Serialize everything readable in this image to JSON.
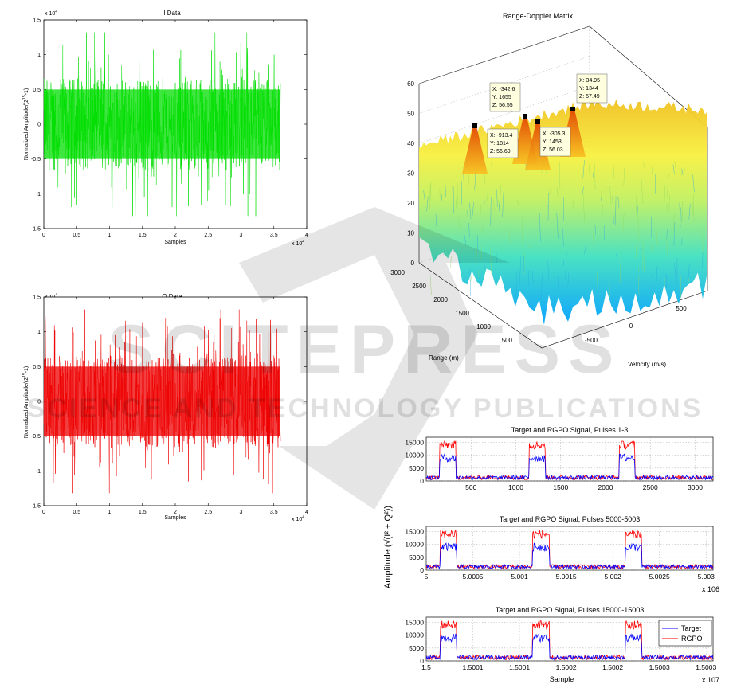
{
  "watermark": {
    "text_main": "SCITEPRESS",
    "text_sub": "SCIENCE AND TECHNOLOGY PUBLICATIONS"
  },
  "chart_data": [
    {
      "type": "line",
      "title": "I Data",
      "xlabel": "Samples",
      "ylabel": "Normalized Amplitude/(2^15-1)",
      "x_exponent": "x 10^4",
      "y_exponent": "x 10^4",
      "xlim": [
        0,
        4
      ],
      "ylim": [
        -1.5,
        1.5
      ],
      "xticks": [
        "0",
        "0.5",
        "1",
        "1.5",
        "2",
        "2.5",
        "3",
        "3.5",
        "4"
      ],
      "yticks": [
        "1.5",
        "1",
        "0.5",
        "0",
        "-0.5",
        "-1",
        "-1.5"
      ],
      "series": [
        {
          "color": "#00dd00",
          "x_range": [
            0,
            3.6
          ],
          "envelope": 1.2
        }
      ]
    },
    {
      "type": "line",
      "title": "Q Data",
      "xlabel": "Samples",
      "ylabel": "Normalized Amplitude/(2^15-1)",
      "x_exponent": "x 10^4",
      "y_exponent": "x 10^4",
      "xlim": [
        0,
        4
      ],
      "ylim": [
        -1.5,
        1.5
      ],
      "xticks": [
        "0",
        "0.5",
        "1",
        "1.5",
        "2",
        "2.5",
        "3",
        "3.5",
        "4"
      ],
      "yticks": [
        "1.5",
        "1",
        "0.5",
        "0",
        "-0.5",
        "-1",
        "-1.5"
      ],
      "series": [
        {
          "color": "#ee0000",
          "x_range": [
            0,
            3.6
          ],
          "envelope": 1.2
        }
      ]
    },
    {
      "type": "surface",
      "title": "Range-Doppler Matrix",
      "xlabel": "Velocity (m/s)",
      "ylabel": "Range (m)",
      "zlim": [
        0,
        60
      ],
      "zticks": [
        "0",
        "10",
        "20",
        "30",
        "40",
        "50",
        "60"
      ],
      "range_ticks": [
        "3000",
        "2500",
        "2000",
        "1500",
        "1000",
        "500"
      ],
      "velocity_ticks": [
        "-500",
        "0",
        "500"
      ],
      "datatips": [
        {
          "x": "X: -913.4",
          "y": "Y: 1814",
          "z": "Z: 56.69"
        },
        {
          "x": "X: -342.6",
          "y": "Y: 1655",
          "z": "Z: 56.55"
        },
        {
          "x": "X: -305.3",
          "y": "Y: 1453",
          "z": "Z: 56.03"
        },
        {
          "x": "X: 34.95",
          "y": "Y: 1344",
          "z": "Z: 57.49"
        }
      ]
    },
    {
      "type": "line",
      "title": "Target and RGPO Signal, Pulses 1-3",
      "xlim": [
        0,
        3200
      ],
      "ylim": [
        0,
        17000
      ],
      "xticks": [
        "500",
        "1000",
        "1500",
        "2000",
        "2500",
        "3000"
      ],
      "yticks": [
        "15000",
        "10000",
        "5000",
        "0"
      ],
      "pulses": [
        {
          "start": 150,
          "end": 330
        },
        {
          "start": 1150,
          "end": 1330
        },
        {
          "start": 2150,
          "end": 2330
        }
      ],
      "target_level": 9000,
      "rgpo_level": 14000,
      "noise_level": 1200
    },
    {
      "type": "line",
      "title": "Target and RGPO Signal, Pulses 5000-5003",
      "xlim": [
        5.0,
        5.0031
      ],
      "ylim": [
        0,
        17000
      ],
      "xticks": [
        "5",
        "5.0005",
        "5.001",
        "5.0015",
        "5.002",
        "5.0025",
        "5.003"
      ],
      "yticks": [
        "15000",
        "10000",
        "5000",
        "0"
      ],
      "x_exponent": "x 10^6",
      "pulses": [
        {
          "start": 5.00015,
          "end": 5.00033
        },
        {
          "start": 5.00115,
          "end": 5.00133
        },
        {
          "start": 5.00215,
          "end": 5.00233
        }
      ],
      "target_level": 9000,
      "rgpo_level": 14000,
      "noise_level": 1200
    },
    {
      "type": "line",
      "title": "Target and RGPO Signal, Pulses 15000-15003",
      "xlabel": "Sample",
      "xlim": [
        1.5,
        1.50031
      ],
      "ylim": [
        0,
        17000
      ],
      "xticks": [
        "1.5",
        "1.5001",
        "1.5001",
        "1.5002",
        "1.5002",
        "1.5003",
        "1.5003"
      ],
      "yticks": [
        "15000",
        "10000",
        "5000",
        "0"
      ],
      "x_exponent": "x 10^7",
      "legend": [
        "Target",
        "RGPO"
      ],
      "legend_position": "bottom-right",
      "pulses": [
        {
          "start": 1.500015,
          "end": 1.500033
        },
        {
          "start": 1.500115,
          "end": 1.500133
        },
        {
          "start": 1.500215,
          "end": 1.500233
        }
      ],
      "target_level": 9000,
      "rgpo_level": 14000,
      "noise_level": 1200
    }
  ],
  "shared": {
    "pulse_ylabel": "Amplitude (√(I² + Q²))",
    "target_color": "#0000ff",
    "rgpo_color": "#ff0000"
  }
}
